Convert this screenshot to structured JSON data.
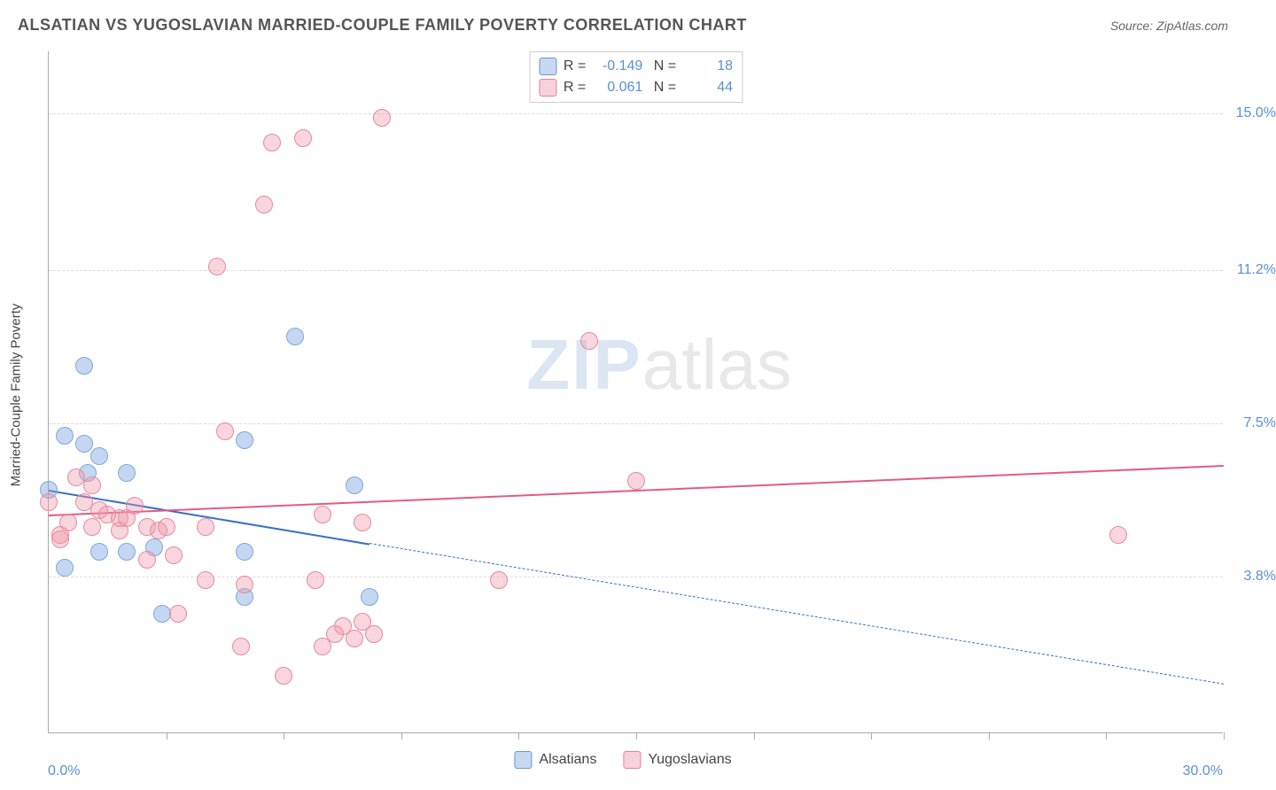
{
  "title": "ALSATIAN VS YUGOSLAVIAN MARRIED-COUPLE FAMILY POVERTY CORRELATION CHART",
  "source": "Source: ZipAtlas.com",
  "y_axis_title": "Married-Couple Family Poverty",
  "watermark_zip": "ZIP",
  "watermark_atlas": "atlas",
  "chart": {
    "type": "scatter-with-regression",
    "background_color": "#ffffff",
    "grid_color": "#dddddd",
    "axis_color": "#aaaaaa",
    "tick_label_color": "#5b8fd6",
    "xlim": [
      0,
      30
    ],
    "ylim": [
      0,
      16.5
    ],
    "x_ticks": [
      0,
      3,
      6,
      9,
      12,
      15,
      18,
      21,
      24,
      27,
      30
    ],
    "x_tick_labels": {
      "min": "0.0%",
      "max": "30.0%"
    },
    "y_gridlines": [
      3.8,
      7.5,
      11.2,
      15.0
    ],
    "y_tick_labels": [
      "3.8%",
      "7.5%",
      "11.2%",
      "15.0%"
    ],
    "point_radius": 10,
    "point_border_width": 1,
    "series": [
      {
        "name": "Alsatians",
        "fill_color": "rgba(127,167,222,0.45)",
        "stroke_color": "#7fa7de",
        "swatch_fill": "#c7d9f2",
        "swatch_border": "#6a96d4",
        "R": "-0.149",
        "N": "18",
        "trend": {
          "color": "#3a6fc7",
          "solid_from_x": 0,
          "solid_from_y": 5.9,
          "solid_to_x": 8.2,
          "solid_to_y": 4.6,
          "dashed_to_x": 30,
          "dashed_to_y": 1.2,
          "width": 2.5
        },
        "points": [
          {
            "x": 0.0,
            "y": 5.9
          },
          {
            "x": 0.4,
            "y": 7.2
          },
          {
            "x": 0.4,
            "y": 4.0
          },
          {
            "x": 0.9,
            "y": 8.9
          },
          {
            "x": 0.9,
            "y": 7.0
          },
          {
            "x": 1.3,
            "y": 6.7
          },
          {
            "x": 1.3,
            "y": 4.4
          },
          {
            "x": 1.0,
            "y": 6.3
          },
          {
            "x": 2.0,
            "y": 6.3
          },
          {
            "x": 2.0,
            "y": 4.4
          },
          {
            "x": 2.7,
            "y": 4.5
          },
          {
            "x": 2.9,
            "y": 2.9
          },
          {
            "x": 5.0,
            "y": 4.4
          },
          {
            "x": 5.0,
            "y": 7.1
          },
          {
            "x": 5.0,
            "y": 3.3
          },
          {
            "x": 6.3,
            "y": 9.6
          },
          {
            "x": 7.8,
            "y": 6.0
          },
          {
            "x": 8.2,
            "y": 3.3
          }
        ]
      },
      {
        "name": "Yugoslavians",
        "fill_color": "rgba(240,150,170,0.40)",
        "stroke_color": "#e68aa0",
        "swatch_fill": "#f7d2da",
        "swatch_border": "#e48098",
        "R": "0.061",
        "N": "44",
        "trend": {
          "color": "#e25b86",
          "solid_from_x": 0,
          "solid_from_y": 5.3,
          "solid_to_x": 30,
          "solid_to_y": 6.5,
          "width": 2.5
        },
        "points": [
          {
            "x": 0.0,
            "y": 5.6
          },
          {
            "x": 0.3,
            "y": 4.8
          },
          {
            "x": 0.3,
            "y": 4.7
          },
          {
            "x": 0.5,
            "y": 5.1
          },
          {
            "x": 0.7,
            "y": 6.2
          },
          {
            "x": 0.9,
            "y": 5.6
          },
          {
            "x": 1.1,
            "y": 5.0
          },
          {
            "x": 1.1,
            "y": 6.0
          },
          {
            "x": 1.3,
            "y": 5.4
          },
          {
            "x": 1.5,
            "y": 5.3
          },
          {
            "x": 1.8,
            "y": 4.9
          },
          {
            "x": 1.8,
            "y": 5.2
          },
          {
            "x": 2.0,
            "y": 5.2
          },
          {
            "x": 2.2,
            "y": 5.5
          },
          {
            "x": 2.5,
            "y": 5.0
          },
          {
            "x": 2.8,
            "y": 4.9
          },
          {
            "x": 2.5,
            "y": 4.2
          },
          {
            "x": 3.0,
            "y": 5.0
          },
          {
            "x": 3.2,
            "y": 4.3
          },
          {
            "x": 3.3,
            "y": 2.9
          },
          {
            "x": 4.0,
            "y": 3.7
          },
          {
            "x": 4.0,
            "y": 5.0
          },
          {
            "x": 4.3,
            "y": 11.3
          },
          {
            "x": 4.5,
            "y": 7.3
          },
          {
            "x": 4.9,
            "y": 2.1
          },
          {
            "x": 5.0,
            "y": 3.6
          },
          {
            "x": 5.5,
            "y": 12.8
          },
          {
            "x": 5.7,
            "y": 14.3
          },
          {
            "x": 6.0,
            "y": 1.4
          },
          {
            "x": 6.5,
            "y": 14.4
          },
          {
            "x": 6.8,
            "y": 3.7
          },
          {
            "x": 7.0,
            "y": 2.1
          },
          {
            "x": 7.0,
            "y": 5.3
          },
          {
            "x": 7.3,
            "y": 2.4
          },
          {
            "x": 7.5,
            "y": 2.6
          },
          {
            "x": 7.8,
            "y": 2.3
          },
          {
            "x": 8.0,
            "y": 2.7
          },
          {
            "x": 8.0,
            "y": 5.1
          },
          {
            "x": 8.3,
            "y": 2.4
          },
          {
            "x": 8.5,
            "y": 14.9
          },
          {
            "x": 11.5,
            "y": 3.7
          },
          {
            "x": 13.8,
            "y": 9.5
          },
          {
            "x": 15.0,
            "y": 6.1
          },
          {
            "x": 27.3,
            "y": 4.8
          }
        ]
      }
    ]
  },
  "legend_bottom": [
    {
      "label": "Alsatians",
      "series_idx": 0
    },
    {
      "label": "Yugoslavians",
      "series_idx": 1
    }
  ]
}
